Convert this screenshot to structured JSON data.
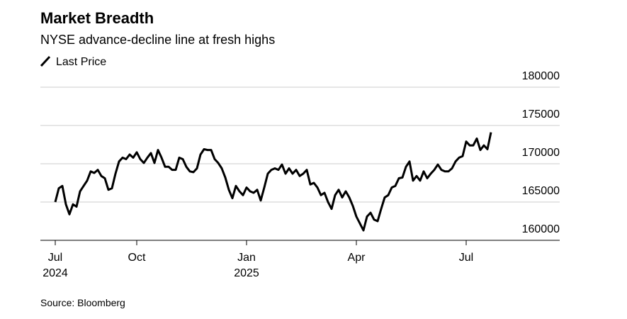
{
  "chart_data": {
    "type": "line",
    "title": "Market Breadth",
    "subtitle": "NYSE advance-decline line at fresh highs",
    "source": "Source: Bloomberg",
    "series": [
      {
        "name": "Last Price",
        "color": "#000000",
        "values": [
          165000,
          166800,
          167100,
          164700,
          163400,
          164700,
          164400,
          166400,
          167100,
          167800,
          169000,
          168800,
          169200,
          168400,
          168100,
          166600,
          166800,
          168700,
          170300,
          170800,
          170600,
          171200,
          170800,
          171500,
          170600,
          170100,
          170800,
          171400,
          170100,
          171800,
          170800,
          169600,
          169600,
          169200,
          169200,
          170800,
          170600,
          169600,
          169000,
          168900,
          169400,
          171200,
          171900,
          171800,
          171800,
          170600,
          170100,
          169400,
          168200,
          166600,
          165500,
          167100,
          166400,
          165900,
          166900,
          166400,
          166200,
          166600,
          165200,
          166900,
          168700,
          169200,
          169400,
          169200,
          169900,
          168700,
          169400,
          168700,
          169200,
          168400,
          168700,
          169200,
          167300,
          167500,
          166900,
          165900,
          166200,
          165000,
          164100,
          165900,
          166600,
          165600,
          166400,
          165600,
          164500,
          163100,
          162200,
          161300,
          163100,
          163600,
          162700,
          162500,
          164100,
          165600,
          165900,
          166900,
          167100,
          168100,
          168200,
          169600,
          170300,
          167800,
          168400,
          167800,
          169000,
          168100,
          168700,
          169200,
          169900,
          169200,
          169000,
          169000,
          169400,
          170300,
          170800,
          171000,
          172900,
          172400,
          172400,
          173300,
          171800,
          172400,
          171900,
          174100
        ]
      }
    ],
    "xticks": [
      {
        "value": 0,
        "label": "Jul",
        "year": "2024"
      },
      {
        "value": 23,
        "label": "Oct"
      },
      {
        "value": 54,
        "label": "Jan",
        "year": "2025"
      },
      {
        "value": 85,
        "label": "Apr"
      },
      {
        "value": 116,
        "label": "Jul"
      }
    ],
    "ylim": [
      160000,
      180000
    ],
    "yticks": [
      160000,
      165000,
      170000,
      175000,
      180000
    ],
    "grid": true
  }
}
